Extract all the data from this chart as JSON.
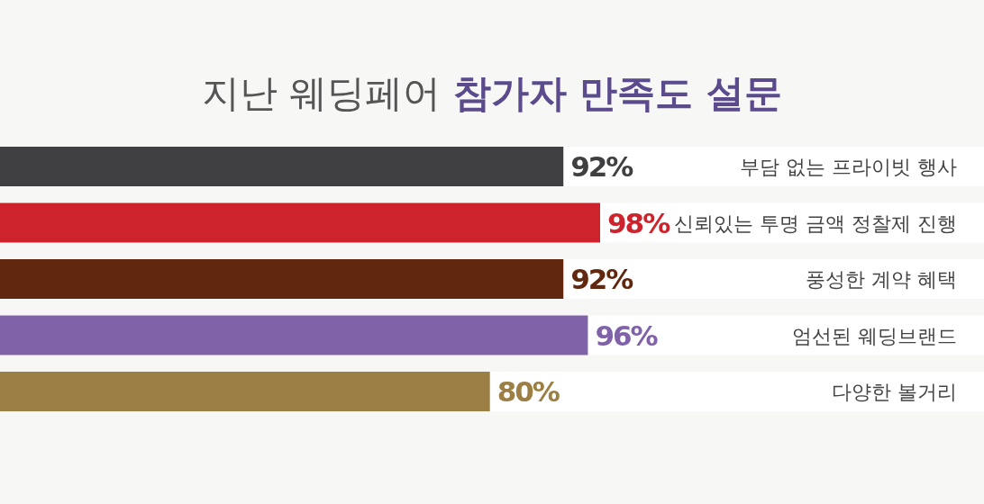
{
  "chart_data": {
    "type": "bar",
    "orientation": "horizontal",
    "title": "지난 웨딩페어 **참가자 만족도 설문**",
    "categories": [
      "부담 없는 프라이빗 행사",
      "신뢰있는 투명 금액 정찰제 진행",
      "풍성한 계약 혜택",
      "엄선된 웨딩브랜드",
      "다양한 볼거리"
    ],
    "values": [
      92,
      98,
      92,
      96,
      80
    ],
    "value_labels": [
      "92%",
      "98%",
      "92%",
      "96%",
      "80%"
    ],
    "colors": [
      "#404042",
      "#cc232d",
      "#62270f",
      "#8062a9",
      "#9b7f45"
    ]
  }
}
